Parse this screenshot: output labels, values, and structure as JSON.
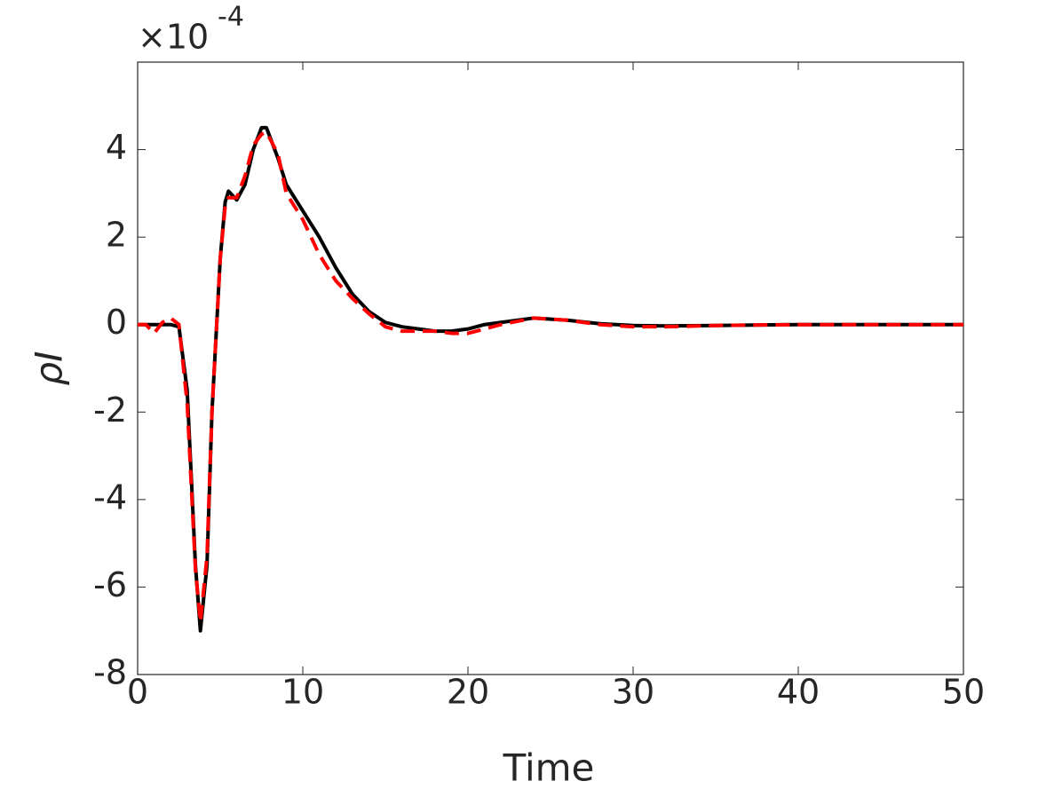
{
  "chart_data": {
    "type": "line",
    "x_label": "Time",
    "y_label": "ρI",
    "y_exponent_label": {
      "base": "×10",
      "exponent": "-4"
    },
    "xlim": [
      0,
      50
    ],
    "xticks": [
      0,
      10,
      20,
      30,
      40,
      50
    ],
    "ylim": [
      -8,
      6
    ],
    "yticks": [
      -8,
      -6,
      -4,
      -2,
      0,
      2,
      4
    ],
    "x": [
      0,
      0.5,
      1,
      1.5,
      2,
      2.5,
      3,
      3.5,
      3.8,
      4.2,
      4.5,
      5,
      5.3,
      5.5,
      6,
      6.5,
      7,
      7.5,
      7.8,
      8.5,
      9,
      10,
      11,
      12,
      13,
      14,
      15,
      16,
      17,
      18,
      19,
      20,
      21,
      22,
      24,
      26,
      28,
      30,
      32,
      35,
      40,
      45,
      50
    ],
    "series": [
      {
        "color": "#000000",
        "dash": "solid",
        "values": [
          0,
          0,
          0,
          0,
          0,
          -0.05,
          -1.5,
          -5.5,
          -7.0,
          -5.5,
          -2,
          1.5,
          2.8,
          3.05,
          2.85,
          3.2,
          4.0,
          4.5,
          4.5,
          3.8,
          3.2,
          2.6,
          2.0,
          1.3,
          0.7,
          0.3,
          0.05,
          -0.05,
          -0.1,
          -0.15,
          -0.15,
          -0.1,
          0,
          0.05,
          0.15,
          0.1,
          0.02,
          -0.02,
          -0.03,
          -0.02,
          0,
          0,
          0
        ]
      },
      {
        "color": "#ff0000",
        "dash": "dashed",
        "values": [
          0,
          0,
          -0.2,
          0.05,
          0.15,
          0,
          -1.8,
          -5.6,
          -6.8,
          -5.3,
          -2,
          1.5,
          2.7,
          2.9,
          2.9,
          3.4,
          4.1,
          4.35,
          4.4,
          3.9,
          3.0,
          2.4,
          1.6,
          1.0,
          0.6,
          0.25,
          -0.05,
          -0.15,
          -0.15,
          -0.15,
          -0.2,
          -0.2,
          -0.1,
          0,
          0.15,
          0.1,
          0,
          -0.05,
          -0.05,
          -0.02,
          0,
          0,
          0
        ]
      }
    ]
  }
}
